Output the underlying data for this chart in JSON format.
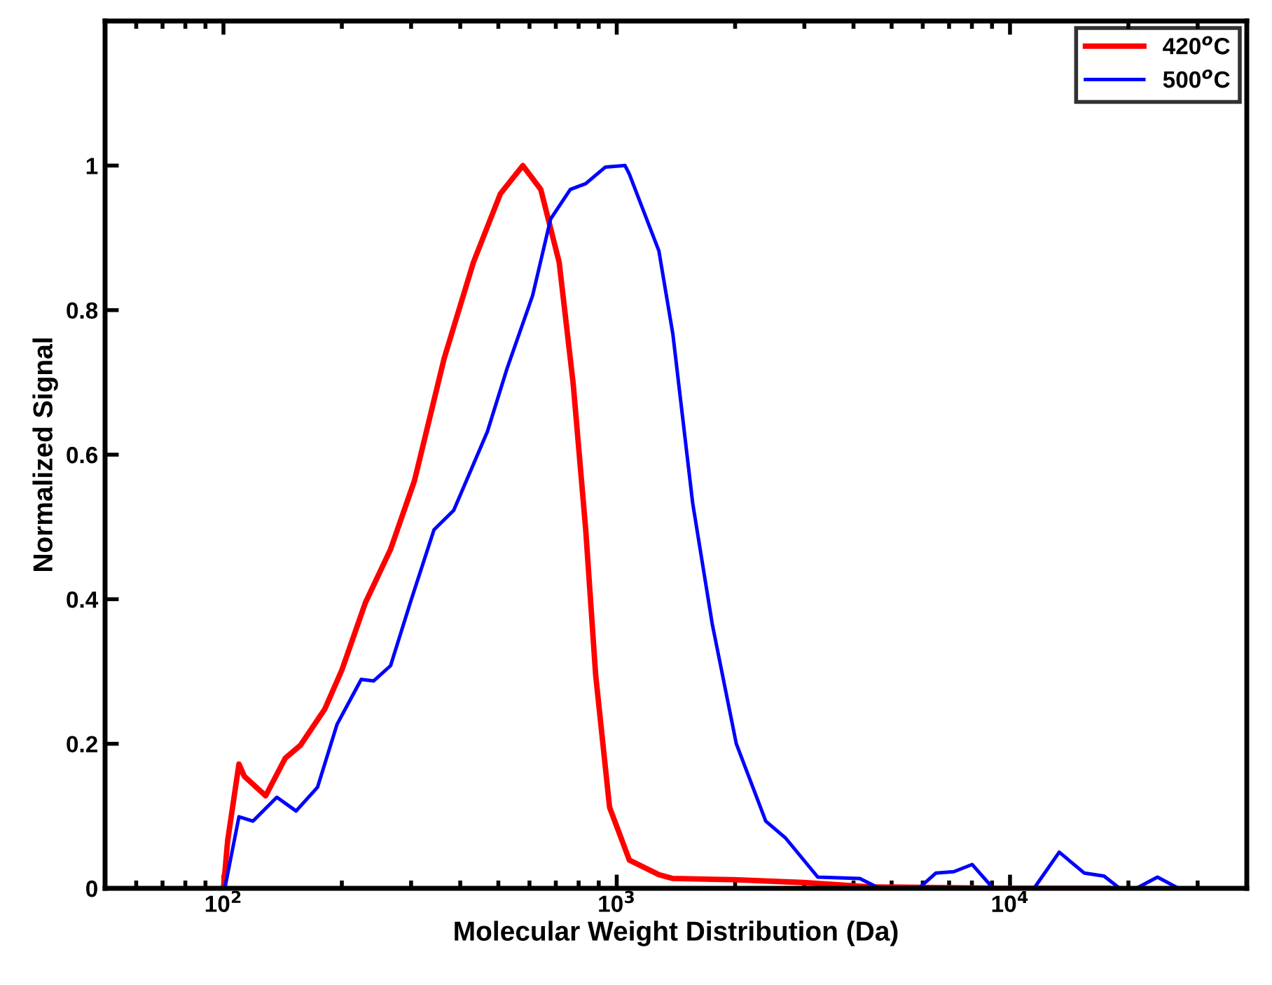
{
  "chart_data": {
    "type": "line",
    "xlabel": "Molecular Weight Distribution (Da)",
    "ylabel": "Normalized Signal",
    "log": "x",
    "xlim": [
      50,
      40000
    ],
    "ylim": [
      0,
      1.2
    ],
    "xticks": [
      {
        "value": 100,
        "label": "10$^{2}$"
      },
      {
        "value": 1000,
        "label": "10$^{3}$"
      },
      {
        "value": 10000,
        "label": "10$^{4}$"
      }
    ],
    "yticks": [
      0,
      0.2,
      0.4,
      0.6,
      0.8,
      1
    ],
    "grid": false,
    "legend": "top right",
    "series": [
      {
        "name": "420$^{o}$C",
        "color": "#ff0000",
        "x": [
          100,
          102.5,
          109.5,
          113,
          128,
          143.6,
          157,
          181,
          200,
          229.5,
          266,
          306,
          364,
          432,
          506,
          577,
          641,
          714,
          775,
          834,
          884,
          959,
          1077,
          1280,
          1389,
          1979,
          2985,
          4393,
          9440,
          17780
        ],
        "values": [
          0,
          0.066,
          0.172,
          0.155,
          0.128,
          0.18,
          0.198,
          0.248,
          0.302,
          0.395,
          0.469,
          0.564,
          0.733,
          0.866,
          0.961,
          1.0,
          0.967,
          0.866,
          0.698,
          0.496,
          0.295,
          0.112,
          0.039,
          0.019,
          0.0136,
          0.012,
          0.008,
          0.002,
          0,
          0
        ]
      },
      {
        "name": "500$^{o}$C",
        "color": "#0000ff",
        "x": [
          100.8,
          109.5,
          118.9,
          136.7,
          153,
          173.5,
          194.5,
          224,
          241,
          266,
          298.5,
          343,
          385,
          469,
          526,
          611,
          679,
          762,
          834,
          936,
          1050,
          1077,
          1280,
          1389,
          1560,
          1749,
          2014,
          2393,
          2683,
          3245,
          4151,
          4656,
          5861,
          6473,
          7197,
          8010,
          9060,
          11510,
          13340,
          15460,
          17340,
          19000,
          20960,
          23710,
          26830
        ],
        "values": [
          0,
          0.099,
          0.093,
          0.126,
          0.107,
          0.14,
          0.227,
          0.289,
          0.287,
          0.308,
          0.395,
          0.496,
          0.523,
          0.632,
          0.719,
          0.82,
          0.926,
          0.967,
          0.975,
          0.998,
          1.0,
          0.988,
          0.882,
          0.767,
          0.533,
          0.366,
          0.2,
          0.093,
          0.07,
          0.0155,
          0.0136,
          0,
          0,
          0.021,
          0.023,
          0.033,
          0,
          0,
          0.05,
          0.021,
          0.017,
          0,
          0,
          0.0155,
          0
        ]
      }
    ]
  }
}
